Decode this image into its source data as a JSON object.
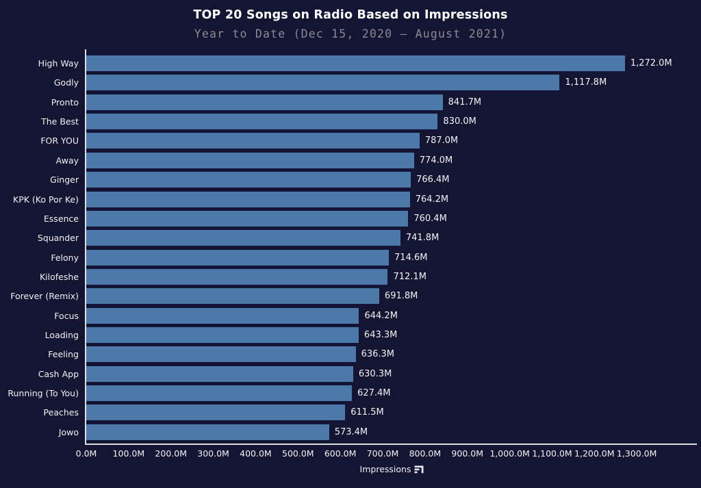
{
  "header": {
    "title": "TOP 20 Songs on Radio Based on Impressions",
    "subtitle": "Year to Date (Dec 15, 2020 — August 2021)"
  },
  "colors": {
    "background": "#131532",
    "bar": "#4d79a8",
    "axis": "#dcdde6",
    "title_text": "#ffffff",
    "subtitle_text": "#8b8b95",
    "tick_text": "#f2f3f7"
  },
  "icons": {
    "xlabel_icon": "horizontal-bar-chart-icon"
  },
  "chart_data": {
    "type": "bar",
    "orientation": "horizontal",
    "title": "TOP 20 Songs on Radio Based on Impressions",
    "subtitle": "Year to Date (Dec 15, 2020 — August 2021)",
    "xlabel": "Impressions",
    "ylabel": "",
    "units": "millions",
    "grid": false,
    "legend": "none",
    "xlim": [
      0,
      1442
    ],
    "categories": [
      "High Way",
      "Godly",
      "Pronto",
      "The Best",
      "FOR YOU",
      "Away",
      "Ginger",
      "KPK (Ko Por Ke)",
      "Essence",
      "Squander",
      "Felony",
      "Kilofeshe",
      "Forever (Remix)",
      "Focus",
      "Loading",
      "Feeling",
      "Cash App",
      "Running (To You)",
      "Peaches",
      "Jowo"
    ],
    "values": [
      1272.0,
      1117.8,
      841.7,
      830.0,
      787.0,
      774.0,
      766.4,
      764.2,
      760.4,
      741.8,
      714.6,
      712.1,
      691.8,
      644.2,
      643.3,
      636.3,
      630.3,
      627.4,
      611.5,
      573.4
    ],
    "value_labels": [
      "1,272.0M",
      "1,117.8M",
      "841.7M",
      "830.0M",
      "787.0M",
      "774.0M",
      "766.4M",
      "764.2M",
      "760.4M",
      "741.8M",
      "714.6M",
      "712.1M",
      "691.8M",
      "644.2M",
      "643.3M",
      "636.3M",
      "630.3M",
      "627.4M",
      "611.5M",
      "573.4M"
    ],
    "x_ticks": [
      {
        "value": 0,
        "label": "0.0M"
      },
      {
        "value": 100,
        "label": "100.0M"
      },
      {
        "value": 200,
        "label": "200.0M"
      },
      {
        "value": 300,
        "label": "300.0M"
      },
      {
        "value": 400,
        "label": "400.0M"
      },
      {
        "value": 500,
        "label": "500.0M"
      },
      {
        "value": 600,
        "label": "600.0M"
      },
      {
        "value": 700,
        "label": "700.0M"
      },
      {
        "value": 800,
        "label": "800.0M"
      },
      {
        "value": 900,
        "label": "900.0M"
      },
      {
        "value": 1000,
        "label": "1,000.0M"
      },
      {
        "value": 1100,
        "label": "1,100.0M"
      },
      {
        "value": 1200,
        "label": "1,200.0M"
      },
      {
        "value": 1300,
        "label": "1,300.0M"
      }
    ]
  }
}
